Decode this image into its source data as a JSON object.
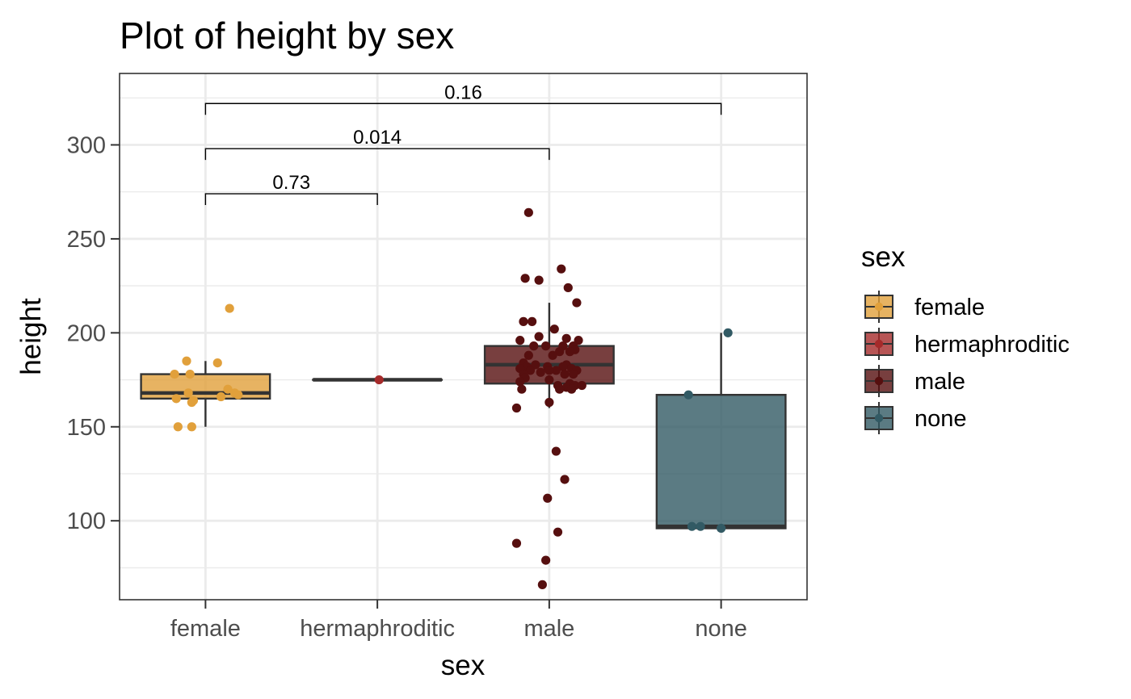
{
  "chart_data": {
    "type": "boxplot",
    "title": "Plot of height by sex",
    "xlabel": "sex",
    "ylabel": "height",
    "ylim": [
      58,
      338
    ],
    "y_ticks": [
      100,
      150,
      200,
      250,
      300
    ],
    "grid": true,
    "legend": {
      "title": "sex",
      "placement": "right"
    },
    "categories": [
      "female",
      "hermaphroditic",
      "male",
      "none"
    ],
    "colors": {
      "female": "#E1A03B",
      "hermaphroditic": "#A52A2A",
      "male": "#560F0F",
      "none": "#325A64"
    },
    "boxes": [
      {
        "category": "female",
        "min": 150,
        "q1": 165,
        "median": 168,
        "q3": 178,
        "max": 185
      },
      {
        "category": "hermaphroditic",
        "min": 175,
        "q1": 175,
        "median": 175,
        "q3": 175,
        "max": 175
      },
      {
        "category": "male",
        "min": 160,
        "q1": 173,
        "median": 183,
        "q3": 193,
        "max": 216
      },
      {
        "category": "none",
        "min": 96,
        "q1": 96,
        "median": 97,
        "q3": 167,
        "max": 200
      }
    ],
    "points": [
      {
        "category": "female",
        "values": [
          213,
          185,
          184,
          178,
          178,
          170,
          168,
          168,
          167,
          166,
          165,
          164,
          163,
          150,
          150
        ],
        "jitter": [
          0.14,
          -0.11,
          0.07,
          -0.18,
          -0.09,
          0.13,
          -0.1,
          0.17,
          0.19,
          0.09,
          -0.17,
          -0.07,
          -0.08,
          -0.16,
          -0.08
        ]
      },
      {
        "category": "hermaphroditic",
        "values": [
          175
        ],
        "jitter": [
          0.01
        ]
      },
      {
        "category": "male",
        "values": [
          264,
          234,
          229,
          228,
          224,
          216,
          206,
          206,
          202,
          198,
          197,
          196,
          196,
          193,
          193,
          193,
          193,
          191,
          190,
          190,
          188,
          188,
          184,
          183,
          183,
          182,
          182,
          182,
          181,
          181,
          180,
          180,
          180,
          180,
          179,
          178,
          178,
          178,
          176,
          175,
          174,
          173,
          172,
          172,
          172,
          171,
          170,
          170,
          170,
          163,
          160,
          137,
          122,
          112,
          94,
          88,
          79,
          66
        ],
        "jitter": [
          -0.12,
          0.07,
          -0.14,
          -0.06,
          0.11,
          0.16,
          -0.15,
          -0.1,
          0.03,
          -0.06,
          0.1,
          0.17,
          -0.17,
          0.08,
          0.14,
          -0.02,
          -0.09,
          0.15,
          0.06,
          0.12,
          -0.12,
          0.02,
          -0.15,
          -0.08,
          0.1,
          -0.13,
          -0.01,
          0.08,
          0.13,
          -0.17,
          0.04,
          -0.11,
          0.0,
          0.16,
          -0.05,
          -0.15,
          0.09,
          0.14,
          -0.14,
          0.0,
          -0.17,
          0.12,
          0.05,
          0.15,
          0.19,
          0.1,
          -0.16,
          0.06,
          0.13,
          0.0,
          -0.19,
          0.04,
          0.09,
          -0.01,
          0.05,
          -0.19,
          -0.02,
          -0.04
        ]
      },
      {
        "category": "none",
        "values": [
          200,
          167,
          97,
          97,
          96
        ],
        "jitter": [
          0.04,
          -0.19,
          -0.17,
          -0.12,
          0.0
        ]
      }
    ],
    "comparisons": [
      {
        "from": "female",
        "to": "hermaphroditic",
        "y": 274,
        "label": "0.73"
      },
      {
        "from": "female",
        "to": "male",
        "y": 298,
        "label": "0.014"
      },
      {
        "from": "female",
        "to": "none",
        "y": 322,
        "label": "0.16"
      }
    ]
  }
}
